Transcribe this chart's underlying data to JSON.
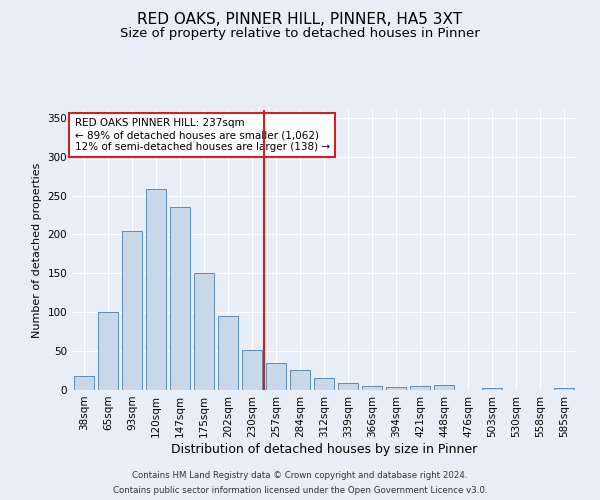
{
  "title": "RED OAKS, PINNER HILL, PINNER, HA5 3XT",
  "subtitle": "Size of property relative to detached houses in Pinner",
  "xlabel": "Distribution of detached houses by size in Pinner",
  "ylabel": "Number of detached properties",
  "categories": [
    "38sqm",
    "65sqm",
    "93sqm",
    "120sqm",
    "147sqm",
    "175sqm",
    "202sqm",
    "230sqm",
    "257sqm",
    "284sqm",
    "312sqm",
    "339sqm",
    "366sqm",
    "394sqm",
    "421sqm",
    "448sqm",
    "476sqm",
    "503sqm",
    "530sqm",
    "558sqm",
    "585sqm"
  ],
  "values": [
    18,
    100,
    205,
    258,
    235,
    150,
    95,
    52,
    35,
    26,
    15,
    9,
    5,
    4,
    5,
    6,
    0,
    3,
    0,
    0,
    3
  ],
  "bar_color": "#c8d8e8",
  "bar_edge_color": "#5b8db8",
  "vline_x_idx": 7.5,
  "vline_color": "#cc2222",
  "annotation_text": "RED OAKS PINNER HILL: 237sqm\n← 89% of detached houses are smaller (1,062)\n12% of semi-detached houses are larger (138) →",
  "annotation_box_color": "#ffffff",
  "annotation_border_color": "#cc2222",
  "ylim": [
    0,
    360
  ],
  "yticks": [
    0,
    50,
    100,
    150,
    200,
    250,
    300,
    350
  ],
  "background_color": "#e8eef8",
  "plot_bg_color": "#e8eef8",
  "footer_line1": "Contains HM Land Registry data © Crown copyright and database right 2024.",
  "footer_line2": "Contains public sector information licensed under the Open Government Licence v3.0.",
  "title_fontsize": 11,
  "subtitle_fontsize": 9.5,
  "xlabel_fontsize": 9,
  "ylabel_fontsize": 8,
  "tick_fontsize": 7.5,
  "annot_fontsize": 7.5
}
